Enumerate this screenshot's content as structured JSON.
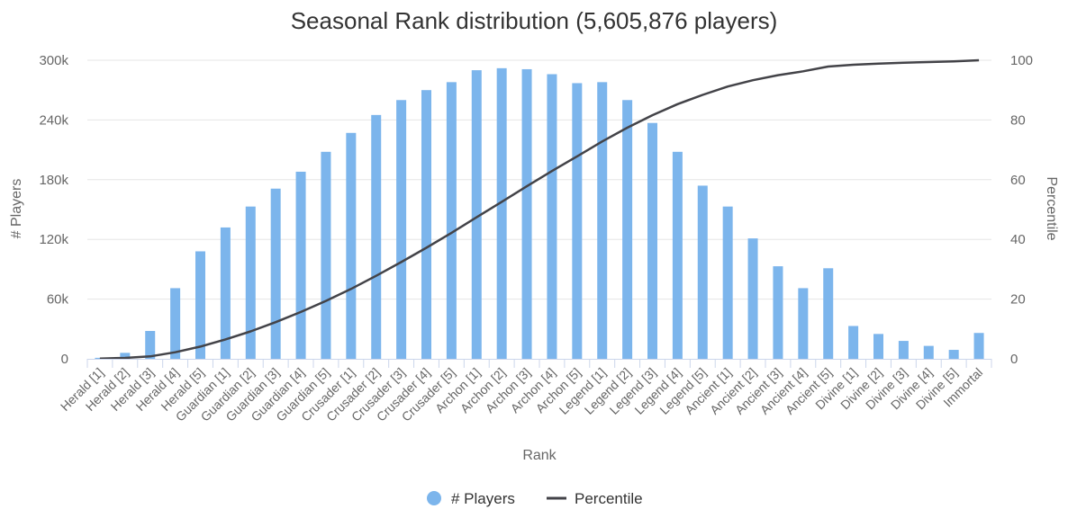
{
  "chart_data": {
    "type": "bar",
    "title": "Seasonal Rank distribution (5,605,876 players)",
    "xlabel": "Rank",
    "ylabel": "# Players",
    "y2label": "Percentile",
    "ylim": [
      0,
      300000
    ],
    "y2lim": [
      0,
      100
    ],
    "yticks": [
      "0",
      "60k",
      "120k",
      "180k",
      "240k",
      "300k"
    ],
    "y2ticks": [
      "0",
      "20",
      "40",
      "60",
      "80",
      "100"
    ],
    "grid": true,
    "legend": "bottom",
    "categories": [
      "Herald [1]",
      "Herald [2]",
      "Herald [3]",
      "Herald [4]",
      "Herald [5]",
      "Guardian [1]",
      "Guardian [2]",
      "Guardian [3]",
      "Guardian [4]",
      "Guardian [5]",
      "Crusader [1]",
      "Crusader [2]",
      "Crusader [3]",
      "Crusader [4]",
      "Crusader [5]",
      "Archon [1]",
      "Archon [2]",
      "Archon [3]",
      "Archon [4]",
      "Archon [5]",
      "Legend [1]",
      "Legend [2]",
      "Legend [3]",
      "Legend [4]",
      "Legend [5]",
      "Ancient [1]",
      "Ancient [2]",
      "Ancient [3]",
      "Ancient [4]",
      "Ancient [5]",
      "Divine [1]",
      "Divine [2]",
      "Divine [3]",
      "Divine [4]",
      "Divine [5]",
      "Immortal"
    ],
    "series": [
      {
        "name": "# Players",
        "kind": "bar",
        "axis": "left",
        "color": "#7cb5ec",
        "values": [
          1000,
          6000,
          28000,
          71000,
          108000,
          132000,
          153000,
          171000,
          188000,
          208000,
          227000,
          245000,
          260000,
          270000,
          278000,
          290000,
          292000,
          291000,
          286000,
          277000,
          278000,
          260000,
          237000,
          208000,
          174000,
          153000,
          121000,
          93000,
          71000,
          91000,
          33000,
          25000,
          18000,
          13000,
          9000,
          26000
        ]
      },
      {
        "name": "Percentile",
        "kind": "line",
        "axis": "right",
        "color": "#434348",
        "values": [
          0.1,
          0.3,
          0.8,
          2.2,
          4.1,
          6.5,
          9.2,
          12.3,
          15.7,
          19.4,
          23.4,
          27.8,
          32.4,
          37.2,
          42.2,
          47.4,
          52.6,
          57.8,
          62.9,
          67.8,
          72.8,
          77.4,
          81.6,
          85.3,
          88.4,
          91.2,
          93.3,
          95.0,
          96.3,
          97.9,
          98.5,
          98.9,
          99.2,
          99.4,
          99.6,
          100
        ]
      }
    ]
  }
}
